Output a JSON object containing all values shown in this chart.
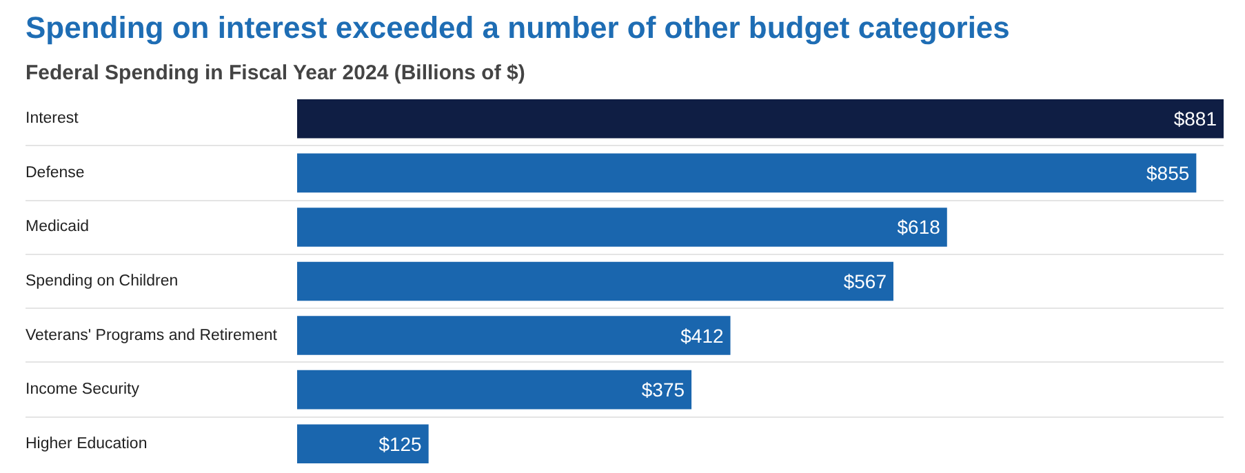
{
  "chart_data": {
    "type": "bar",
    "orientation": "horizontal",
    "title": "Spending on interest exceeded a number of other budget categories",
    "subtitle": "Federal Spending in Fiscal Year 2024 (Billions of $)",
    "categories": [
      "Interest",
      "Defense",
      "Medicaid",
      "Spending on Children",
      "Veterans' Programs and Retirement",
      "Income Security",
      "Higher Education"
    ],
    "values": [
      881,
      855,
      618,
      567,
      412,
      375,
      125
    ],
    "value_labels": [
      "$881",
      "$855",
      "$618",
      "$567",
      "$412",
      "$375",
      "$125"
    ],
    "colors": [
      "#0f1e44",
      "#1a66ae",
      "#1a66ae",
      "#1a66ae",
      "#1a66ae",
      "#1a66ae",
      "#1a66ae"
    ],
    "grid": "y"
  }
}
